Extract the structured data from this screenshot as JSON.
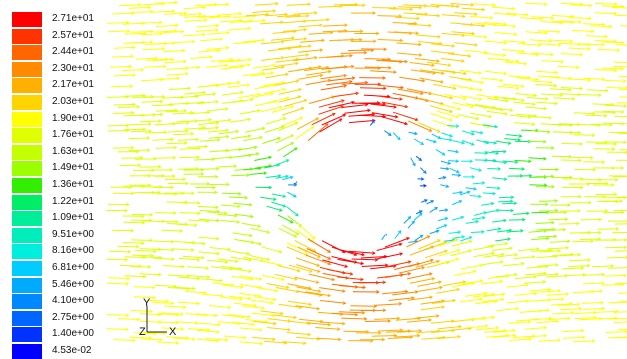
{
  "legend": {
    "labels": [
      "2.71e+01",
      "2.57e+01",
      "2.44e+01",
      "2.30e+01",
      "2.17e+01",
      "2.03e+01",
      "1.90e+01",
      "1.76e+01",
      "1.63e+01",
      "1.49e+01",
      "1.36e+01",
      "1.22e+01",
      "1.09e+01",
      "9.51e+00",
      "8.16e+00",
      "6.81e+00",
      "5.46e+00",
      "4.10e+00",
      "2.75e+00",
      "1.40e+00",
      "4.53e-02"
    ],
    "colors": [
      "#ff0000",
      "#ff3300",
      "#ff6600",
      "#ff8c00",
      "#ffb000",
      "#ffd400",
      "#ffff00",
      "#e0ff00",
      "#c4ff00",
      "#9cff00",
      "#33ee00",
      "#00ee66",
      "#00ee99",
      "#00eebb",
      "#00eedd",
      "#00ccff",
      "#00aaff",
      "#0088ff",
      "#0066ff",
      "#0033ff",
      "#0000ff"
    ]
  },
  "axes": {
    "y_label": "Y",
    "z_label": "Z",
    "x_label": "X"
  },
  "field": {
    "inlet_velocity": 19.0,
    "cylinder_radius_ratio": 0.17
  }
}
